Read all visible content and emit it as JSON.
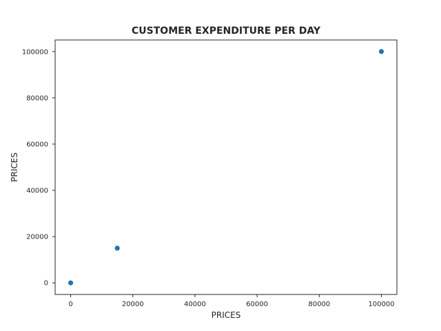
{
  "chart_data": {
    "type": "scatter",
    "title": "CUSTOMER EXPENDITURE PER DAY",
    "xlabel": "PRICES",
    "ylabel": "PRICES",
    "x_ticks": [
      0,
      20000,
      40000,
      60000,
      80000,
      100000
    ],
    "y_ticks": [
      0,
      20000,
      40000,
      60000,
      80000,
      100000
    ],
    "xlim": [
      -5000,
      105000
    ],
    "ylim": [
      -5000,
      105000
    ],
    "grid": false,
    "series": [
      {
        "color": "#1f77b4",
        "points": [
          {
            "x": 0,
            "y": 0
          },
          {
            "x": 15000,
            "y": 15000
          },
          {
            "x": 100000,
            "y": 100000
          }
        ]
      }
    ]
  }
}
